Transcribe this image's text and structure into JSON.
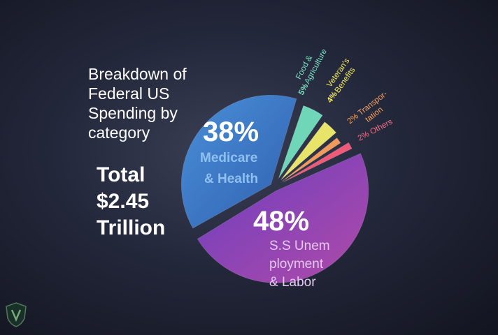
{
  "title": "Breakdown of\nFederal US\nSpending by\ncategory",
  "total": "Total\n$2.45\nTrillion",
  "chart_data": {
    "type": "pie",
    "title": "Breakdown of Federal US Spending by category",
    "slices": [
      {
        "label": "S.S Unem ployment & Labor",
        "value": 48,
        "pct_label": "48%",
        "color": "#8e3fb0"
      },
      {
        "label": "Medicare & Health",
        "value": 38,
        "pct_label": "38%",
        "color": "#3f78c8"
      },
      {
        "label": "Food & Agriculture",
        "value": 5,
        "pct_label": "5%",
        "color": "#6fd6b8"
      },
      {
        "label": "Veteran's Benefits",
        "value": 4,
        "pct_label": "4%",
        "color": "#e8e46a"
      },
      {
        "label": "Transpor- tation",
        "value": 2,
        "pct_label": "2%",
        "color": "#f29a5a"
      },
      {
        "label": "Others",
        "value": 2,
        "pct_label": "2%",
        "color": "#ee5a78"
      }
    ]
  },
  "labels": {
    "ss_pct": "48%",
    "ss_line1": "S.S Unem",
    "ss_line2": "ployment",
    "ss_line3": "& Labor",
    "med_pct": "38%",
    "med_line1": "Medicare",
    "med_line2": "& Health",
    "food_line1": "Food &",
    "food_line2": "Agriculture",
    "food_pct": "5%",
    "vet_pct": "4%",
    "vet_line1": "Veteran's",
    "vet_line2": "Benefits",
    "trans_line1": "2% Transpor-",
    "trans_line2": "tation",
    "others_line1": "2% Others"
  },
  "logo_icon": "shield-logo-icon"
}
